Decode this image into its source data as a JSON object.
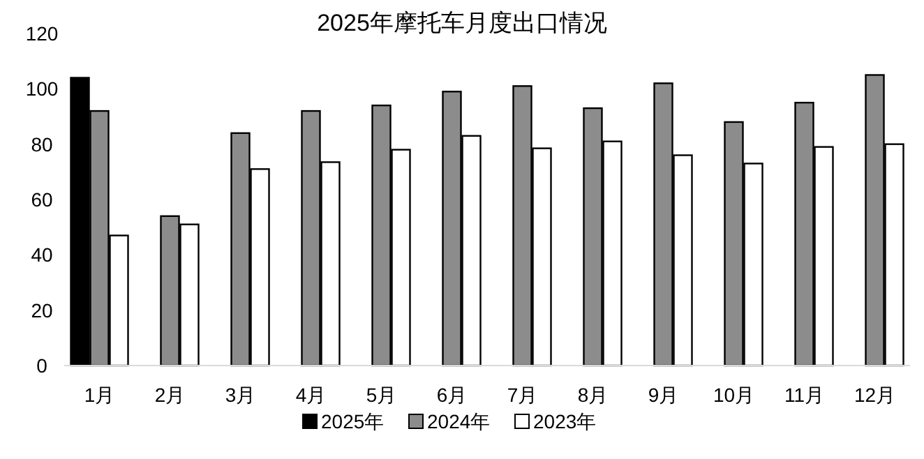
{
  "chart_data": {
    "type": "bar",
    "title": "2025年摩托车月度出口情况",
    "categories": [
      "1月",
      "2月",
      "3月",
      "4月",
      "5月",
      "6月",
      "7月",
      "8月",
      "9月",
      "10月",
      "11月",
      "12月"
    ],
    "series": [
      {
        "name": "2025年",
        "color": "#000000",
        "values": [
          104,
          null,
          null,
          null,
          null,
          null,
          null,
          null,
          null,
          null,
          null,
          null
        ]
      },
      {
        "name": "2024年",
        "color": "#8c8c8c",
        "values": [
          92,
          54,
          84,
          92,
          94,
          99,
          101,
          93,
          102,
          88,
          95,
          105
        ]
      },
      {
        "name": "2023年",
        "color": "#ffffff",
        "values": [
          47,
          51,
          71,
          73.5,
          78,
          83,
          78.5,
          81,
          76,
          73,
          79,
          80
        ]
      }
    ],
    "ylim": [
      0,
      120
    ],
    "yticks": [
      0,
      20,
      40,
      60,
      80,
      100,
      120
    ],
    "grid": false,
    "legend": "bottom"
  }
}
